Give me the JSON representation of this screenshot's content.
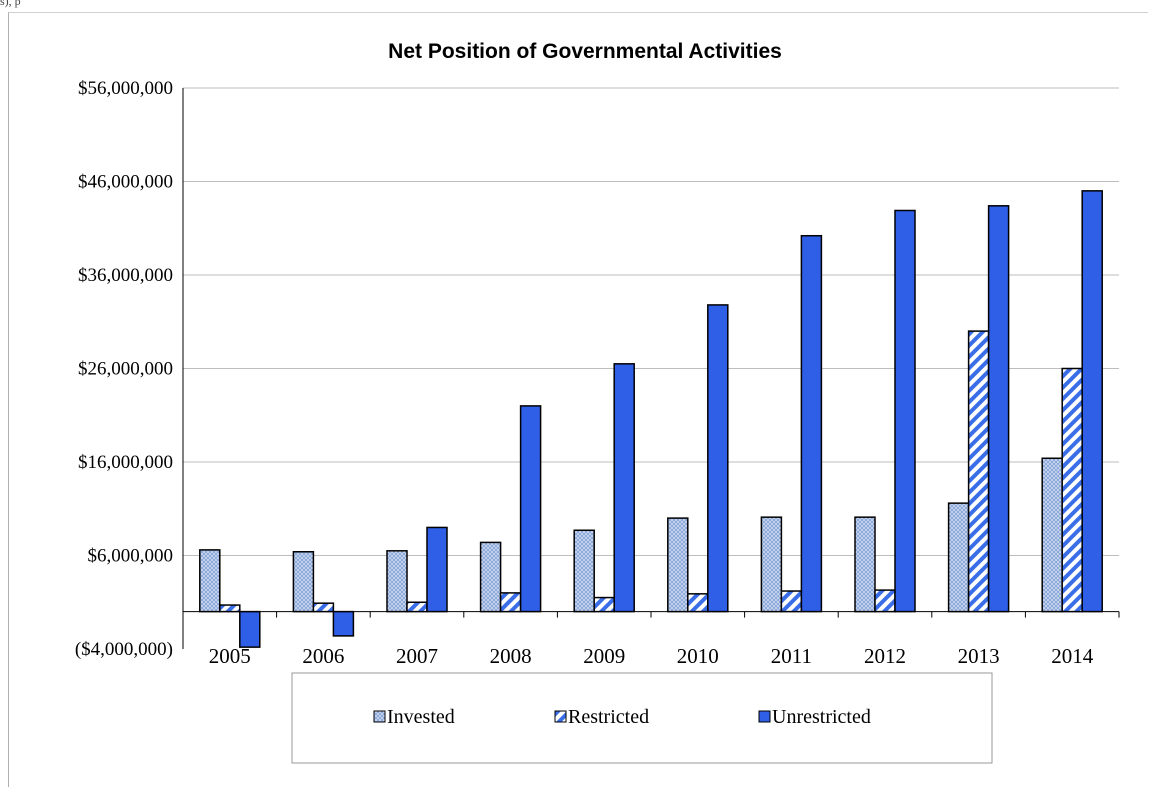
{
  "page": {
    "top_fragment": "s), p"
  },
  "chart_data": {
    "type": "bar",
    "title": "Net Position of Governmental Activities",
    "xlabel": "",
    "ylabel": "",
    "ylim": [
      -4000000,
      56000000
    ],
    "yticks": [
      -4000000,
      6000000,
      16000000,
      26000000,
      36000000,
      46000000,
      56000000
    ],
    "ytick_labels": [
      "($4,000,000)",
      "$6,000,000",
      "$16,000,000",
      "$26,000,000",
      "$36,000,000",
      "$46,000,000",
      "$56,000,000"
    ],
    "categories": [
      "2005",
      "2006",
      "2007",
      "2008",
      "2009",
      "2010",
      "2011",
      "2012",
      "2013",
      "2014"
    ],
    "series": [
      {
        "name": "Invested",
        "color": "#8eaadb",
        "pattern": "dotted",
        "values": [
          6600000,
          6400000,
          6500000,
          7400000,
          8700000,
          10000000,
          10100000,
          10100000,
          11600000,
          16400000
        ]
      },
      {
        "name": "Restricted",
        "color": "#4472e0",
        "pattern": "diagonal-stripe",
        "values": [
          700000,
          900000,
          1000000,
          2000000,
          1500000,
          1900000,
          2200000,
          2300000,
          30000000,
          26000000
        ]
      },
      {
        "name": "Unrestricted",
        "color": "#2f5fe6",
        "pattern": "solid",
        "values": [
          -3800000,
          -2600000,
          9000000,
          22000000,
          26500000,
          32800000,
          40200000,
          42900000,
          43400000,
          45000000
        ]
      }
    ],
    "grid": true,
    "legend_position": "bottom"
  }
}
